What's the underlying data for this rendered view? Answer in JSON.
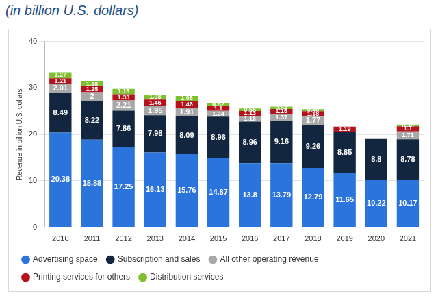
{
  "chart_data": {
    "type": "bar",
    "title": "(in billion U.S. dollars)",
    "y_label": "Revenue in billion U.S. dollars",
    "categories": [
      "2010",
      "2011",
      "2012",
      "2013",
      "2014",
      "2015",
      "2016",
      "2017",
      "2018",
      "2019",
      "2020",
      "2021"
    ],
    "series": [
      {
        "name": "Advertising space",
        "color": "#2a74db",
        "values": [
          20.38,
          18.88,
          17.25,
          16.13,
          15.76,
          14.87,
          13.8,
          13.79,
          12.79,
          11.65,
          10.22,
          10.17
        ]
      },
      {
        "name": "Subscription and sales",
        "color": "#12263f",
        "values": [
          8.49,
          8.22,
          7.86,
          7.98,
          8.09,
          8.96,
          8.96,
          9.16,
          9.26,
          8.85,
          8.8,
          8.78
        ]
      },
      {
        "name": "All other operating revenue",
        "color": "#a8a8a8",
        "values": [
          2.01,
          2,
          2.21,
          1.95,
          1.91,
          1.24,
          1.16,
          1.37,
          1.77,
          null,
          null,
          1.71
        ]
      },
      {
        "name": "Printing services for others",
        "color": "#b5121b",
        "values": [
          1.21,
          1.25,
          1.33,
          1.46,
          1.46,
          1.1,
          1.13,
          1.15,
          1.18,
          1.19,
          null,
          1.1
        ]
      },
      {
        "name": "Distribution services",
        "color": "#7fbf2e",
        "values": [
          1.27,
          1.18,
          1.15,
          1.08,
          1.06,
          0.62,
          0.55,
          0.54,
          0.46,
          null,
          null,
          0.36
        ]
      }
    ],
    "ylim": [
      0,
      40
    ],
    "yticks": [
      0,
      10,
      20,
      30,
      40
    ],
    "grid": true,
    "stacked": true,
    "data_labels": true,
    "legend": "bottom"
  }
}
